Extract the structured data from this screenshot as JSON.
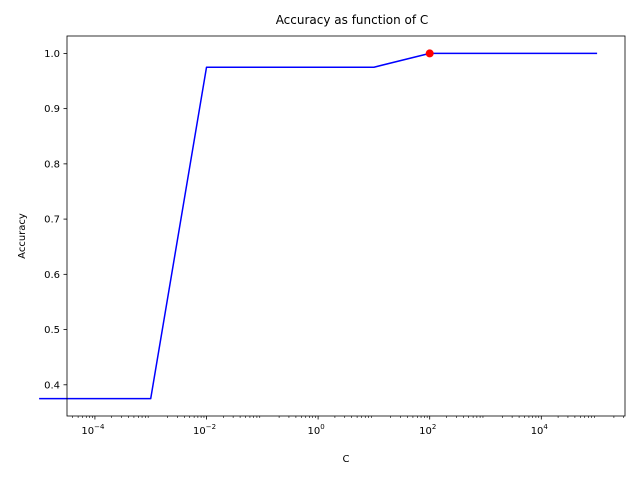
{
  "chart_data": {
    "type": "line",
    "title": "Accuracy as function of C",
    "xlabel": "C",
    "ylabel": "Accuracy",
    "x_scale": "log",
    "xlim": [
      3.16e-05,
      316228
    ],
    "ylim": [
      0.3435,
      1.0315
    ],
    "x_ticks": [
      {
        "value": 0.0001,
        "base": "10",
        "exp": "−4"
      },
      {
        "value": 0.01,
        "base": "10",
        "exp": "−2"
      },
      {
        "value": 1,
        "base": "10",
        "exp": "0"
      },
      {
        "value": 100,
        "base": "10",
        "exp": "2"
      },
      {
        "value": 10000,
        "base": "10",
        "exp": "4"
      }
    ],
    "y_ticks": [
      0.4,
      0.5,
      0.6,
      0.7,
      0.8,
      0.9,
      1.0
    ],
    "y_tick_labels": [
      "0.4",
      "0.5",
      "0.6",
      "0.7",
      "0.8",
      "0.9",
      "1.0"
    ],
    "grid": false,
    "series": [
      {
        "color": "#0000ff",
        "x": [
          1e-05,
          0.0001,
          0.001,
          0.01,
          0.1,
          1,
          10,
          100,
          1000,
          10000,
          100000
        ],
        "y": [
          0.375,
          0.375,
          0.375,
          0.975,
          0.975,
          0.975,
          0.975,
          1.0,
          1.0,
          1.0,
          1.0
        ]
      }
    ],
    "highlight_point": {
      "x": 100,
      "y": 1.0,
      "color": "#ff0000"
    }
  }
}
